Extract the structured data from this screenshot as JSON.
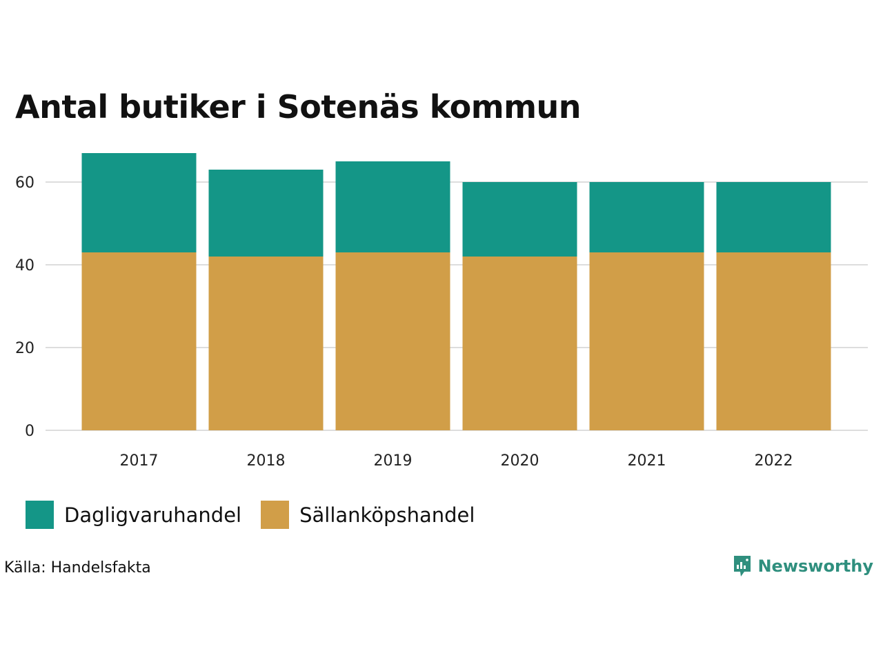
{
  "header": {
    "title": "Antal butiker i Sotenäs kommun"
  },
  "colors": {
    "dagligvaruhandel": "#149687",
    "sallankopshandel": "#d19e48",
    "grid": "#dddddd",
    "brand": "#2f8f7e"
  },
  "chart_data": {
    "type": "bar",
    "stacked": true,
    "categories": [
      "2017",
      "2018",
      "2019",
      "2020",
      "2021",
      "2022"
    ],
    "series": [
      {
        "name": "Sällanköpshandel",
        "values": [
          43,
          42,
          43,
          42,
          43,
          43
        ]
      },
      {
        "name": "Dagligvaruhandel",
        "values": [
          24,
          21,
          22,
          18,
          17,
          17
        ]
      }
    ],
    "yticks": [
      0,
      20,
      40,
      60
    ],
    "ylim": [
      0,
      67
    ],
    "grid": true,
    "legend": "bottom-left"
  },
  "legend": {
    "items": [
      {
        "label": "Dagligvaruhandel",
        "color": "#149687"
      },
      {
        "label": "Sällanköpshandel",
        "color": "#d19e48"
      }
    ]
  },
  "footer": {
    "source": "Källa: Handelsfakta",
    "brand": "Newsworthy",
    "brand_icon": "bar-chart-bubble-icon"
  }
}
